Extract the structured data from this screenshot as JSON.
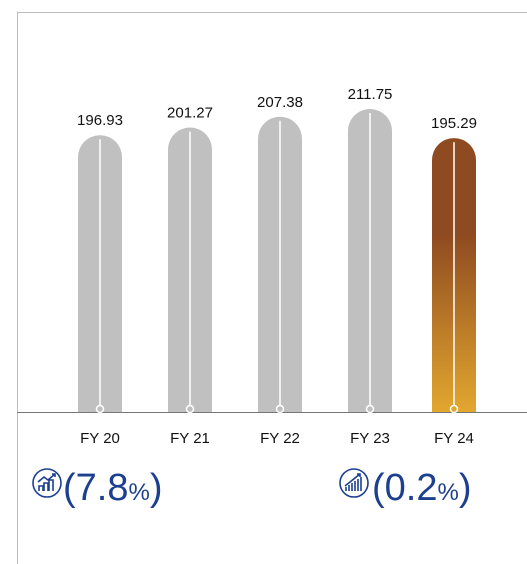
{
  "chart_data": {
    "type": "bar",
    "categories": [
      "FY 20",
      "FY 21",
      "FY 22",
      "FY 23",
      "FY 24"
    ],
    "values": [
      196.93,
      201.27,
      207.38,
      211.75,
      195.29
    ],
    "colors": [
      "#c0c0c0",
      "#c0c0c0",
      "#c0c0c0",
      "#c0c0c0",
      "gradient"
    ],
    "gradient": [
      "#8e4a20",
      "#e3a72f"
    ],
    "ylim": [
      40,
      220
    ],
    "annotations": [
      {
        "open": "(7.8",
        "unit": "%",
        "close": ")"
      },
      {
        "open": "(0.2",
        "unit": "%",
        "close": ")"
      }
    ]
  }
}
